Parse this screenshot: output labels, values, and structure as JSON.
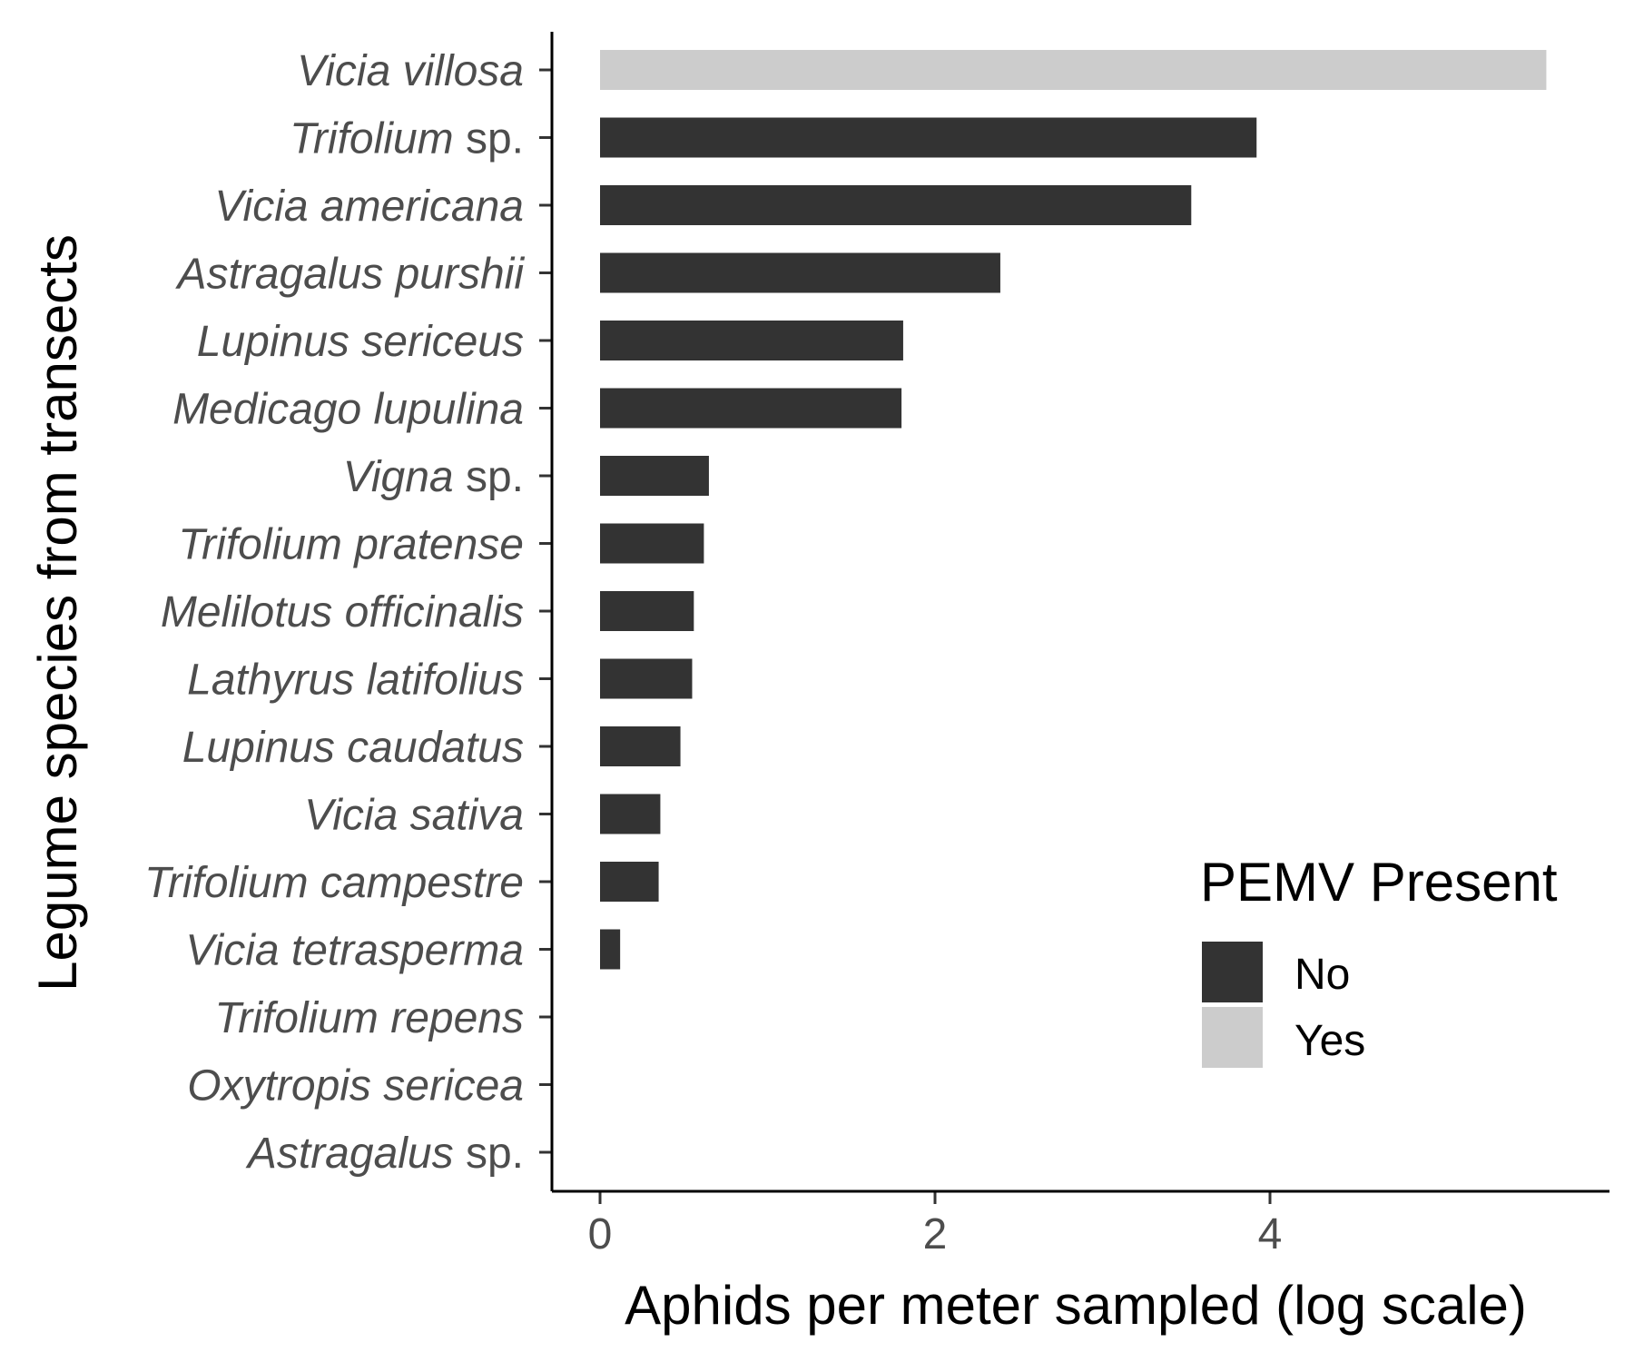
{
  "chart_data": {
    "type": "bar",
    "orientation": "horizontal",
    "xlabel": "Aphids per meter sampled (log scale)",
    "ylabel": "Legume species from transects",
    "xlim": [
      0,
      6
    ],
    "x_ticks": [
      "0",
      "2",
      "4"
    ],
    "x_tick_values": [
      0,
      2,
      4
    ],
    "grid": false,
    "legend": {
      "title": "PEMV Present",
      "position": "bottom-right",
      "entries": [
        {
          "label": "No",
          "color": "#333333"
        },
        {
          "label": "Yes",
          "color": "#cccccc"
        }
      ]
    },
    "categories": [
      {
        "italic": "Vicia villosa",
        "suffix": ""
      },
      {
        "italic": "Trifolium",
        "suffix": " sp."
      },
      {
        "italic": "Vicia americana",
        "suffix": ""
      },
      {
        "italic": "Astragalus purshii",
        "suffix": ""
      },
      {
        "italic": "Lupinus sericeus",
        "suffix": ""
      },
      {
        "italic": "Medicago lupulina",
        "suffix": ""
      },
      {
        "italic": "Vigna",
        "suffix": " sp."
      },
      {
        "italic": "Trifolium pratense",
        "suffix": ""
      },
      {
        "italic": "Melilotus officinalis",
        "suffix": ""
      },
      {
        "italic": "Lathyrus latifolius",
        "suffix": ""
      },
      {
        "italic": "Lupinus caudatus",
        "suffix": ""
      },
      {
        "italic": "Vicia sativa",
        "suffix": ""
      },
      {
        "italic": "Trifolium campestre",
        "suffix": ""
      },
      {
        "italic": "Vicia tetrasperma",
        "suffix": ""
      },
      {
        "italic": "Trifolium repens",
        "suffix": ""
      },
      {
        "italic": "Oxytropis sericea",
        "suffix": ""
      },
      {
        "italic": "Astragalus",
        "suffix": " sp."
      }
    ],
    "values": [
      5.65,
      3.92,
      3.53,
      2.39,
      1.81,
      1.8,
      0.65,
      0.62,
      0.56,
      0.55,
      0.48,
      0.36,
      0.35,
      0.12,
      0,
      0,
      0
    ],
    "pemv_present": [
      "Yes",
      "No",
      "No",
      "No",
      "No",
      "No",
      "No",
      "No",
      "No",
      "No",
      "No",
      "No",
      "No",
      "No",
      "No",
      "No",
      "No"
    ]
  }
}
